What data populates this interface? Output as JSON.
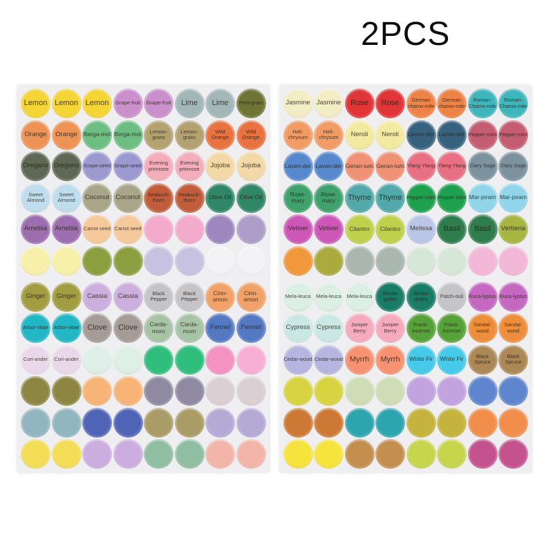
{
  "header": {
    "quantity_label": "2PCS"
  },
  "colors": {
    "page_bg": "#ffffff",
    "sheet_bg": "#efeef1",
    "label_text": "#2a2016"
  },
  "sheets": [
    {
      "name": "sticker-sheet-left",
      "rows": [
        [
          {
            "l": "Lemon",
            "c": "#f4d535"
          },
          {
            "l": "Lemon",
            "c": "#f4d535"
          },
          {
            "l": "Lemon",
            "c": "#f4d535"
          },
          {
            "l": "Grape-fruit",
            "c": "#ca90cc"
          },
          {
            "l": "Grape-fruit",
            "c": "#ca90cc"
          },
          {
            "l": "Lime",
            "c": "#a3b7b9"
          },
          {
            "l": "Lime",
            "c": "#a3b7b9"
          },
          {
            "l": "Petit-grain",
            "c": "#6e7434"
          }
        ],
        [
          {
            "l": "Orange",
            "c": "#ee9355"
          },
          {
            "l": "Orange",
            "c": "#ee9355"
          },
          {
            "l": "Berga-mot",
            "c": "#6dbe83"
          },
          {
            "l": "Berga-mot",
            "c": "#6dbe83"
          },
          {
            "l": "Lemon-grass",
            "c": "#b3a170"
          },
          {
            "l": "Lemon-grass",
            "c": "#b3a170"
          },
          {
            "l": "Wild Orange",
            "c": "#e87240"
          },
          {
            "l": "Wild Orange",
            "c": "#e87240"
          }
        ],
        [
          {
            "l": "Oregano",
            "c": "#5f6854"
          },
          {
            "l": "Oregano",
            "c": "#5f6854"
          },
          {
            "l": "Grape-seed",
            "c": "#9c99d1"
          },
          {
            "l": "Grape-seed",
            "c": "#9c99d1"
          },
          {
            "l": "Evening primrose",
            "c": "#f3adbb"
          },
          {
            "l": "Evening primrose",
            "c": "#f3adbb"
          },
          {
            "l": "Jojoba",
            "c": "#f2d9a7"
          },
          {
            "l": "Jojoba",
            "c": "#f2d9a7"
          }
        ],
        [
          {
            "l": "Sweet Almond",
            "c": "#bfddec"
          },
          {
            "l": "Sweet Almond",
            "c": "#bfddec"
          },
          {
            "l": "Coconut",
            "c": "#a9a58a"
          },
          {
            "l": "Coconut",
            "c": "#a9a58a"
          },
          {
            "l": "Seabuck-thorn",
            "c": "#c15d3a"
          },
          {
            "l": "Seabuck-thorn",
            "c": "#c15d3a"
          },
          {
            "l": "Olive Oil",
            "c": "#2f8767"
          },
          {
            "l": "Olive Oil",
            "c": "#2f8767"
          }
        ],
        [
          {
            "l": "Arnebia",
            "c": "#9c6daf"
          },
          {
            "l": "Arnebia",
            "c": "#9c6daf"
          },
          {
            "l": "Carrot seed",
            "c": "#f6c99c"
          },
          {
            "l": "Carrot seed",
            "c": "#f6c99c"
          },
          {
            "l": "",
            "c": "#f4aaca"
          },
          {
            "l": "",
            "c": "#f4aaca"
          },
          {
            "l": "",
            "c": "#9e87bf"
          },
          {
            "l": "",
            "c": "#af9dc9"
          }
        ],
        [
          {
            "l": "",
            "c": "#f7f0aa"
          },
          {
            "l": "",
            "c": "#f7f0aa"
          },
          {
            "l": "",
            "c": "#8b9e40"
          },
          {
            "l": "",
            "c": "#8b9e40"
          },
          {
            "l": "",
            "c": "#c7c2e2"
          },
          {
            "l": "",
            "c": "#c7c2e2"
          },
          {
            "l": "",
            "c": "#f3f3f5"
          },
          {
            "l": "",
            "c": "#f3f3f5"
          }
        ],
        [
          {
            "l": "Ginger",
            "c": "#a29d41"
          },
          {
            "l": "Ginger",
            "c": "#a29d41"
          },
          {
            "l": "Cassia",
            "c": "#ccafde"
          },
          {
            "l": "Cassia",
            "c": "#ccafde"
          },
          {
            "l": "Black Pepper",
            "c": "#c5c5c9"
          },
          {
            "l": "Black Pepper",
            "c": "#c5c5c9"
          },
          {
            "l": "Cinn-amon",
            "c": "#f0a269"
          },
          {
            "l": "Cinn-amon",
            "c": "#f0a269"
          }
        ],
        [
          {
            "l": "Arbor-vitae",
            "c": "#22b7c5"
          },
          {
            "l": "Arbor-vitae",
            "c": "#22b7c5"
          },
          {
            "l": "Clove",
            "c": "#a59c98"
          },
          {
            "l": "Clove",
            "c": "#a59c98"
          },
          {
            "l": "Carda-mom",
            "c": "#a7c4a7"
          },
          {
            "l": "Carda-mom",
            "c": "#a7c4a7"
          },
          {
            "l": "Fennel",
            "c": "#5478c2"
          },
          {
            "l": "Fennel",
            "c": "#5478c2"
          }
        ],
        [
          {
            "l": "Cori-ander",
            "c": "#ead8ea"
          },
          {
            "l": "Cori-ander",
            "c": "#ead8ea"
          },
          {
            "l": "",
            "c": "#ddefe6"
          },
          {
            "l": "",
            "c": "#ddefe6"
          },
          {
            "l": "",
            "c": "#2fbe7c"
          },
          {
            "l": "",
            "c": "#2fbe7c"
          },
          {
            "l": "",
            "c": "#f293c2"
          },
          {
            "l": "",
            "c": "#f7b0d4"
          }
        ],
        [
          {
            "l": "",
            "c": "#8d8642"
          },
          {
            "l": "",
            "c": "#8d8642"
          },
          {
            "l": "",
            "c": "#f8b377"
          },
          {
            "l": "",
            "c": "#f8b377"
          },
          {
            "l": "",
            "c": "#8f89a2"
          },
          {
            "l": "",
            "c": "#8f89a2"
          },
          {
            "l": "",
            "c": "#dacfd3"
          },
          {
            "l": "",
            "c": "#dacfd3"
          }
        ],
        [
          {
            "l": "",
            "c": "#91b6bf"
          },
          {
            "l": "",
            "c": "#91b6bf"
          },
          {
            "l": "",
            "c": "#4f64b7"
          },
          {
            "l": "",
            "c": "#4f64b7"
          },
          {
            "l": "",
            "c": "#aa9c66"
          },
          {
            "l": "",
            "c": "#aa9c66"
          },
          {
            "l": "",
            "c": "#b5aad6"
          },
          {
            "l": "",
            "c": "#b5aad6"
          }
        ],
        [
          {
            "l": "",
            "c": "#f3dd57"
          },
          {
            "l": "",
            "c": "#f3dd57"
          },
          {
            "l": "",
            "c": "#cbaddf"
          },
          {
            "l": "",
            "c": "#cbaddf"
          },
          {
            "l": "",
            "c": "#90bea2"
          },
          {
            "l": "",
            "c": "#90bea2"
          },
          {
            "l": "",
            "c": "#f3b5aa"
          },
          {
            "l": "",
            "c": "#f3b5aa"
          }
        ]
      ]
    },
    {
      "name": "sticker-sheet-right",
      "rows": [
        [
          {
            "l": "Jasmine",
            "c": "#f3edc5"
          },
          {
            "l": "Jasmine",
            "c": "#f3edc5"
          },
          {
            "l": "Rose",
            "c": "#e13537"
          },
          {
            "l": "Rose",
            "c": "#e13537"
          },
          {
            "l": "German chamo-mile",
            "c": "#ee8348"
          },
          {
            "l": "German chamo-mile",
            "c": "#ee8348"
          },
          {
            "l": "Roman-Chamo-mile",
            "c": "#3fb6bc"
          },
          {
            "l": "Roman-Chamo-mile",
            "c": "#3fb6bc"
          }
        ],
        [
          {
            "l": "Heli-chrysum",
            "c": "#f19c64"
          },
          {
            "l": "Heli-chrysum",
            "c": "#f19c64"
          },
          {
            "l": "Neroli",
            "c": "#f3eaa2"
          },
          {
            "l": "Neroli",
            "c": "#f3eaa2"
          },
          {
            "l": "Laven-der",
            "c": "#36627f"
          },
          {
            "l": "Laven-der",
            "c": "#36627f"
          },
          {
            "l": "Pepper-mint",
            "c": "#c45c72"
          },
          {
            "l": "Pepper-mint",
            "c": "#c45c72"
          }
        ],
        [
          {
            "l": "Laven-der",
            "c": "#5688cd"
          },
          {
            "l": "Laven-der",
            "c": "#5688cd"
          },
          {
            "l": "Geran-ium",
            "c": "#f19174"
          },
          {
            "l": "Geran-ium",
            "c": "#f19174"
          },
          {
            "l": "Ylang Ylang",
            "c": "#e96f82"
          },
          {
            "l": "Ylang Ylang",
            "c": "#e96f82"
          },
          {
            "l": "Clary Sage",
            "c": "#7c929f"
          },
          {
            "l": "Clary Sage",
            "c": "#7c929f"
          }
        ],
        [
          {
            "l": "Rose-mary",
            "c": "#3fa16d"
          },
          {
            "l": "Rose-mary",
            "c": "#3fa16d"
          },
          {
            "l": "Thyme",
            "c": "#51a9a9"
          },
          {
            "l": "Thyme",
            "c": "#51a9a9"
          },
          {
            "l": "Pepper-mint",
            "c": "#1da14f"
          },
          {
            "l": "Pepper-mint",
            "c": "#1da14f"
          },
          {
            "l": "Mar-joram",
            "c": "#91d5eb"
          },
          {
            "l": "Mar-joram",
            "c": "#91d5eb"
          }
        ],
        [
          {
            "l": "Vetiver",
            "c": "#cd57b7"
          },
          {
            "l": "Vetiver",
            "c": "#cd57b7"
          },
          {
            "l": "Cilantro",
            "c": "#bed14c"
          },
          {
            "l": "Cilantro",
            "c": "#bed14c"
          },
          {
            "l": "Melissa",
            "c": "#bac6e8"
          },
          {
            "l": "Basil",
            "c": "#2f7c4c"
          },
          {
            "l": "Basil",
            "c": "#2f7c4c"
          },
          {
            "l": "Verbena",
            "c": "#a6b641"
          }
        ],
        [
          {
            "l": "",
            "c": "#f1973c"
          },
          {
            "l": "",
            "c": "#aaaa3f"
          },
          {
            "l": "",
            "c": "#aab7af"
          },
          {
            "l": "",
            "c": "#aab7af"
          },
          {
            "l": "",
            "c": "#d7e7d7"
          },
          {
            "l": "",
            "c": "#d7e7d7"
          },
          {
            "l": "",
            "c": "#f3b7d7"
          },
          {
            "l": "",
            "c": "#f3b7d7"
          }
        ],
        [
          {
            "l": "Mela-leuca",
            "c": "#dbefe4"
          },
          {
            "l": "Mela-leuca",
            "c": "#dbefe4"
          },
          {
            "l": "Mela-leuca",
            "c": "#dbefe4"
          },
          {
            "l": "Winter green",
            "c": "#197c67"
          },
          {
            "l": "Winter green",
            "c": "#197c67"
          },
          {
            "l": "Patch-ouli",
            "c": "#c5c5c9"
          },
          {
            "l": "Euca-lyptus",
            "c": "#c667c2"
          },
          {
            "l": "Euca-lyptus",
            "c": "#c667c2"
          }
        ],
        [
          {
            "l": "Cypress",
            "c": "#cbe7e4"
          },
          {
            "l": "Cypress",
            "c": "#cbe7e4"
          },
          {
            "l": "Juniper Berry",
            "c": "#f6aabe"
          },
          {
            "l": "Juniper Berry",
            "c": "#f6aabe"
          },
          {
            "l": "Frank-incense",
            "c": "#57a139"
          },
          {
            "l": "Frank-incense",
            "c": "#57a139"
          },
          {
            "l": "Sandal-wood",
            "c": "#ed8e3c"
          },
          {
            "l": "Sandal-wood",
            "c": "#ed8e3c"
          }
        ],
        [
          {
            "l": "Cedar-wood",
            "c": "#b5b5df"
          },
          {
            "l": "Cedar-wood",
            "c": "#b5b5df"
          },
          {
            "l": "Myrrh",
            "c": "#f69272"
          },
          {
            "l": "Myrrh",
            "c": "#f69272"
          },
          {
            "l": "White Fir",
            "c": "#47c9e9"
          },
          {
            "l": "White Fir",
            "c": "#47c9e9"
          },
          {
            "l": "Black Spruce",
            "c": "#ab8855"
          },
          {
            "l": "Black Spruce",
            "c": "#ab8855"
          }
        ],
        [
          {
            "l": "",
            "c": "#d8d441"
          },
          {
            "l": "",
            "c": "#d8d441"
          },
          {
            "l": "",
            "c": "#ceddb5"
          },
          {
            "l": "",
            "c": "#ceddb5"
          },
          {
            "l": "",
            "c": "#c2a2df"
          },
          {
            "l": "",
            "c": "#c2a2df"
          },
          {
            "l": "",
            "c": "#5e85ce"
          },
          {
            "l": "",
            "c": "#5e85ce"
          }
        ],
        [
          {
            "l": "",
            "c": "#cd7935"
          },
          {
            "l": "",
            "c": "#cd7935"
          },
          {
            "l": "",
            "c": "#2ca5af"
          },
          {
            "l": "",
            "c": "#2ca5af"
          },
          {
            "l": "",
            "c": "#c4b33c"
          },
          {
            "l": "",
            "c": "#c4b33c"
          },
          {
            "l": "",
            "c": "#f18e4c"
          },
          {
            "l": "",
            "c": "#f18e4c"
          }
        ],
        [
          {
            "l": "",
            "c": "#f6e33c"
          },
          {
            "l": "",
            "c": "#f6e33c"
          },
          {
            "l": "",
            "c": "#c48e4f"
          },
          {
            "l": "",
            "c": "#c48e4f"
          },
          {
            "l": "",
            "c": "#c6d64c"
          },
          {
            "l": "",
            "c": "#c6d64c"
          },
          {
            "l": "",
            "c": "#c4528e"
          },
          {
            "l": "",
            "c": "#c4528e"
          }
        ]
      ]
    }
  ]
}
